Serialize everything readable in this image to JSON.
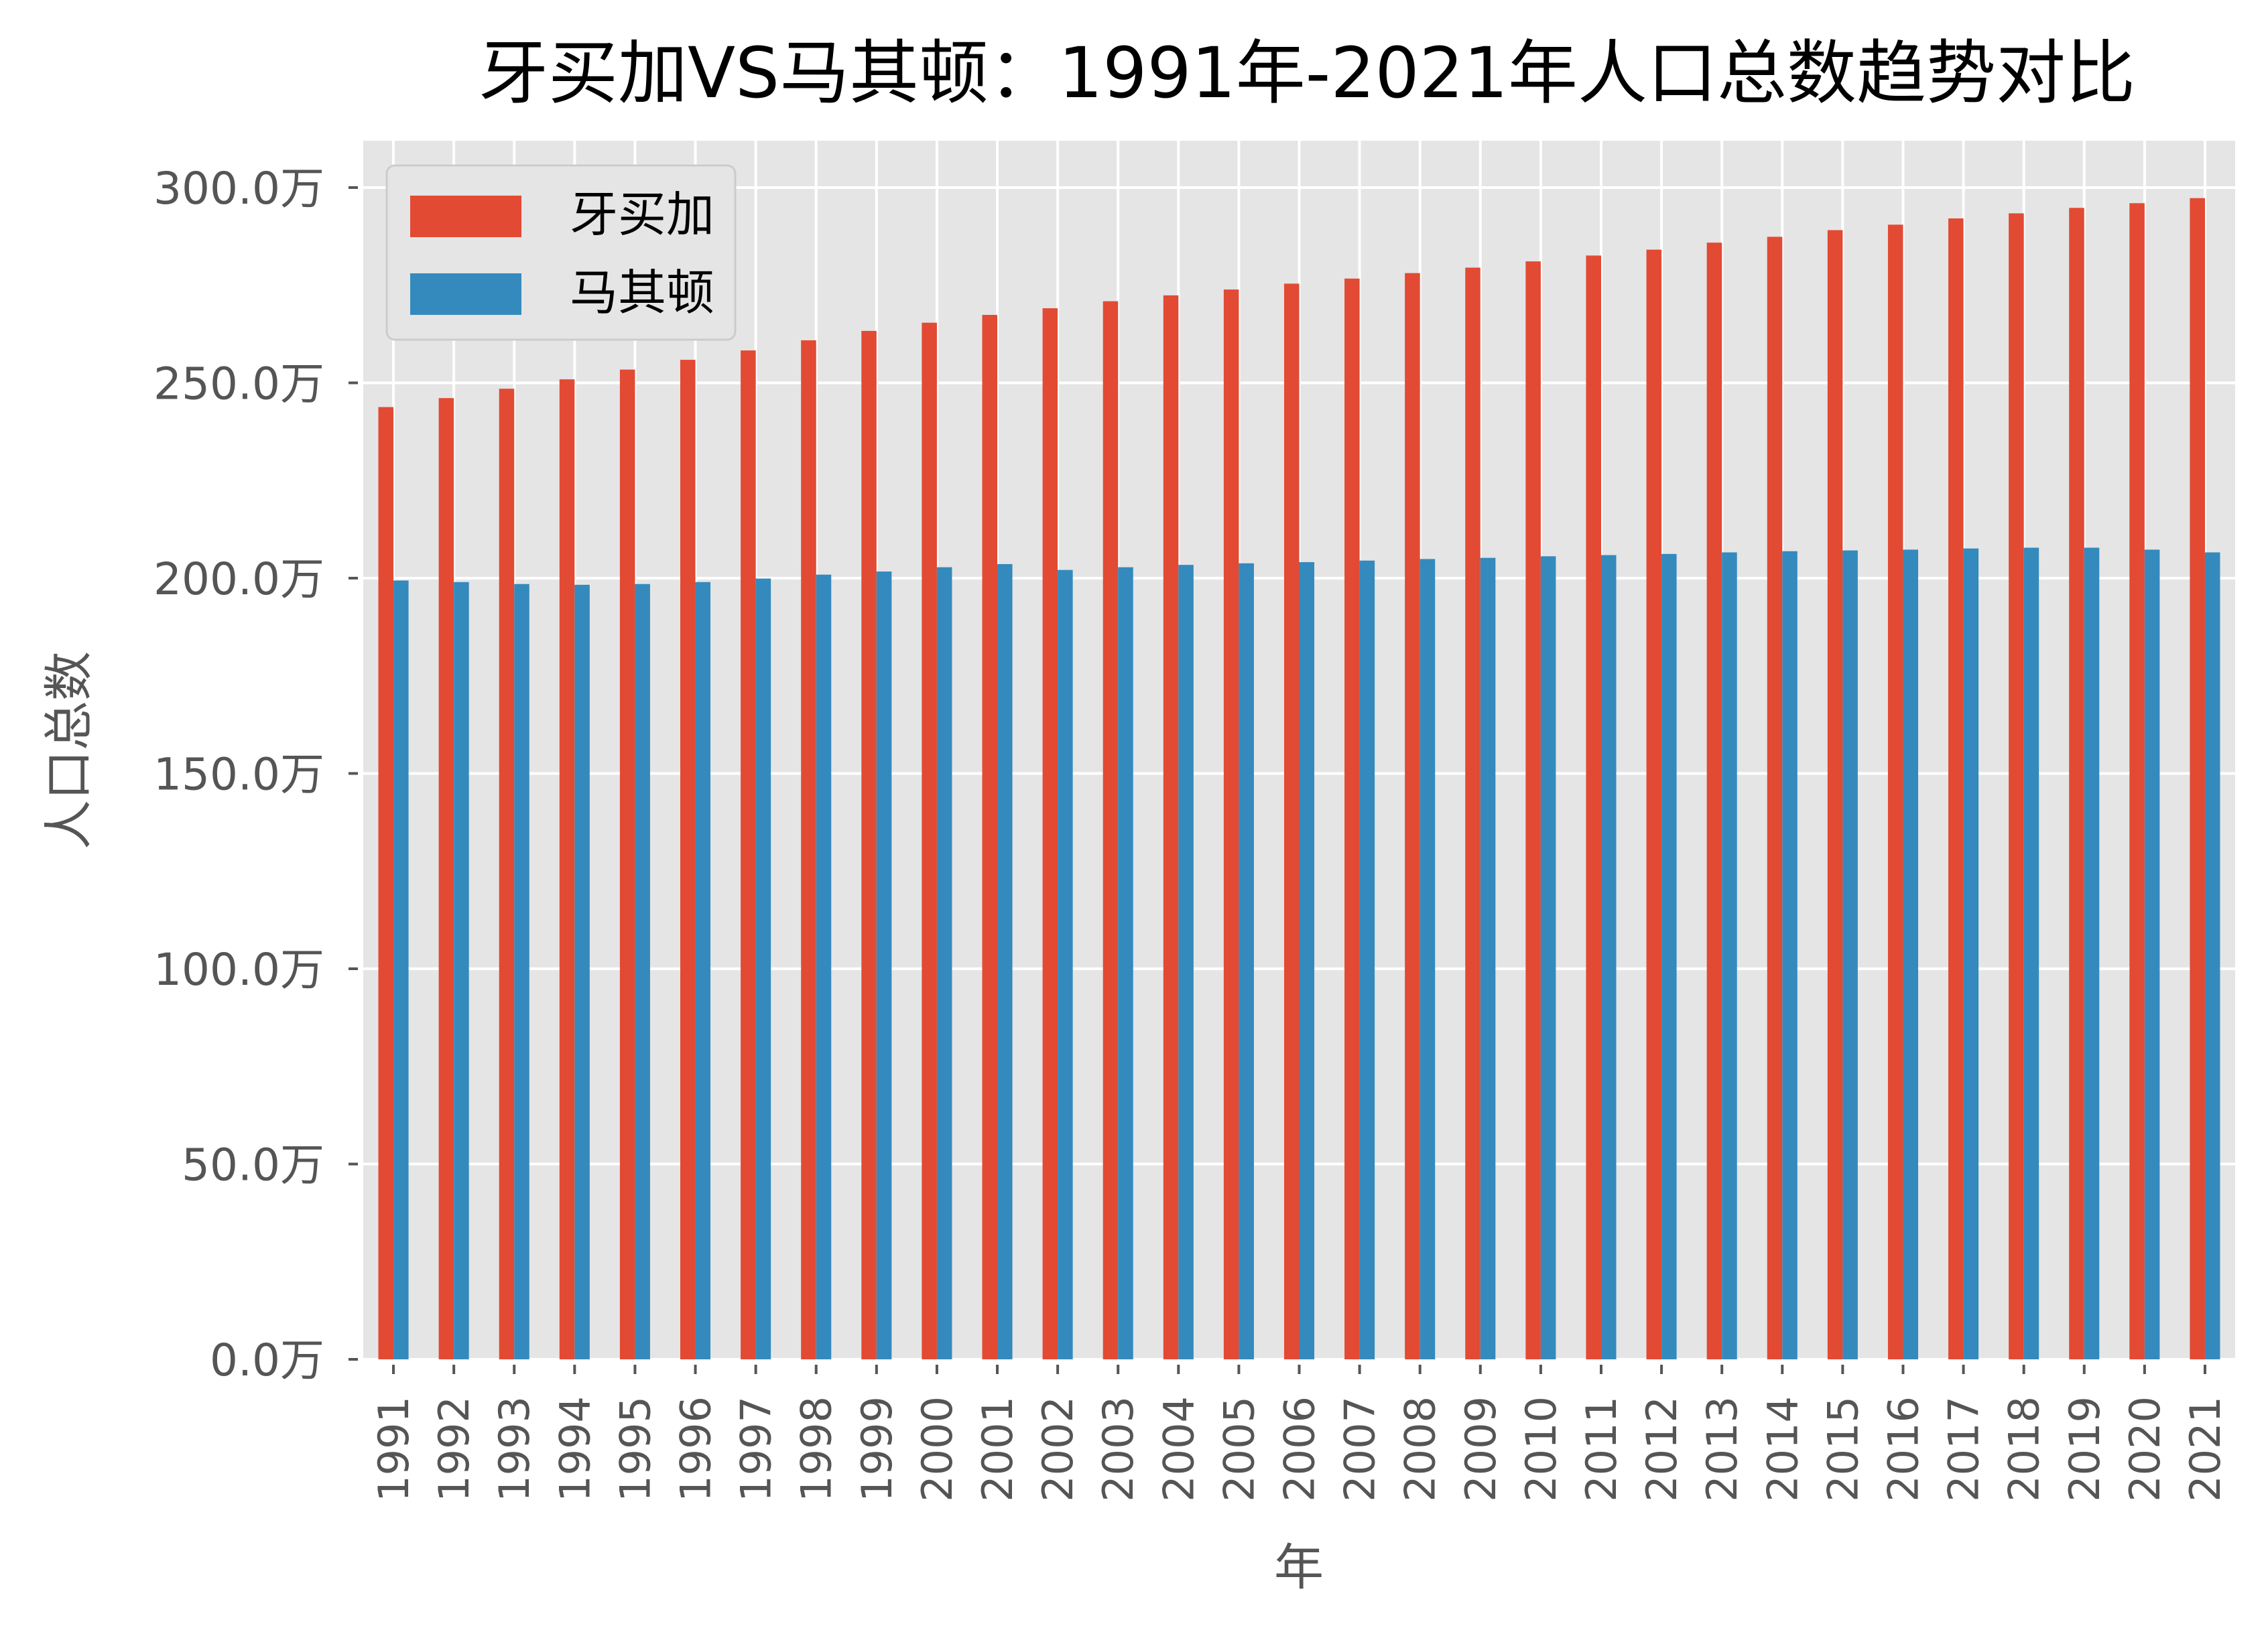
{
  "chart_data": {
    "type": "bar",
    "title": "牙买加VS马其顿：1991年-2021年人口总数趋势对比",
    "xlabel": "年",
    "ylabel": "人口总数",
    "ylim": [
      0,
      312
    ],
    "yticks": [
      0,
      50,
      100,
      150,
      200,
      250,
      300
    ],
    "ytick_labels": [
      "0.0万",
      "50.0万",
      "100.0万",
      "150.0万",
      "200.0万",
      "250.0万",
      "300.0万"
    ],
    "grid": true,
    "legend_position": "top-left",
    "categories": [
      "1991",
      "1992",
      "1993",
      "1994",
      "1995",
      "1996",
      "1997",
      "1998",
      "1999",
      "2000",
      "2001",
      "2002",
      "2003",
      "2004",
      "2005",
      "2006",
      "2007",
      "2008",
      "2009",
      "2010",
      "2011",
      "2012",
      "2013",
      "2014",
      "2015",
      "2016",
      "2017",
      "2018",
      "2019",
      "2020",
      "2021"
    ],
    "series": [
      {
        "name": "牙买加",
        "color": "#E24A33",
        "values": [
          243.8,
          246.1,
          248.5,
          250.9,
          253.4,
          255.9,
          258.3,
          260.9,
          263.3,
          265.4,
          267.4,
          269.1,
          270.9,
          272.4,
          273.9,
          275.4,
          276.7,
          278.1,
          279.5,
          281.1,
          282.6,
          284.1,
          285.9,
          287.4,
          289.1,
          290.5,
          292.1,
          293.4,
          294.8,
          296.0,
          297.3
        ]
      },
      {
        "name": "马其顿",
        "color": "#348ABD",
        "values": [
          199.4,
          199.0,
          198.5,
          198.3,
          198.5,
          199.0,
          199.9,
          200.9,
          201.7,
          202.8,
          203.6,
          202.1,
          202.8,
          203.4,
          203.8,
          204.1,
          204.5,
          204.9,
          205.2,
          205.6,
          205.9,
          206.2,
          206.6,
          206.9,
          207.1,
          207.3,
          207.6,
          207.8,
          207.8,
          207.3,
          206.6
        ]
      }
    ]
  }
}
